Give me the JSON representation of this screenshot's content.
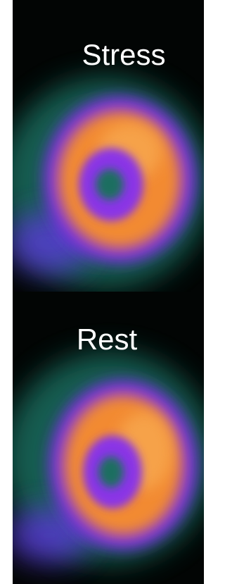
{
  "panels": [
    {
      "label": "Stress"
    },
    {
      "label": "Rest"
    }
  ]
}
